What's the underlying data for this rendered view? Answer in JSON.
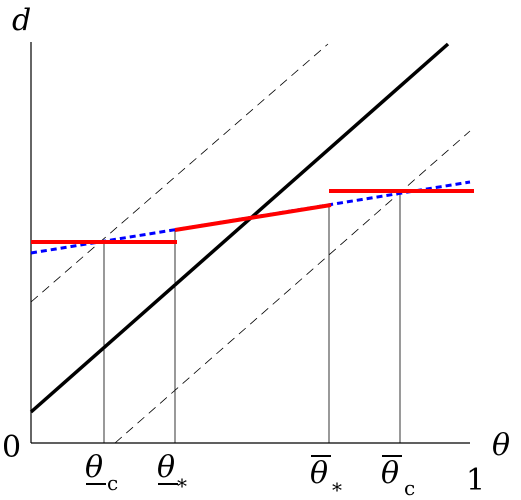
{
  "figure": {
    "y_axis_label": "d",
    "x_axis_label": "θ",
    "origin_label": "0",
    "x_end_label": "1",
    "ticks": {
      "theta_c_lower": {
        "symbol": "θ",
        "sub": "c"
      },
      "theta_star_lower": {
        "symbol": "θ",
        "sub": "*"
      },
      "theta_star_upper": {
        "symbol": "θ",
        "sub": "*"
      },
      "theta_c_upper": {
        "symbol": "θ",
        "sub": "c"
      }
    }
  },
  "colors": {
    "main_line": "#000000",
    "guide_lines": "#000000",
    "red_segments": "#ff0000",
    "blue_dotted": "#0000ff"
  }
}
